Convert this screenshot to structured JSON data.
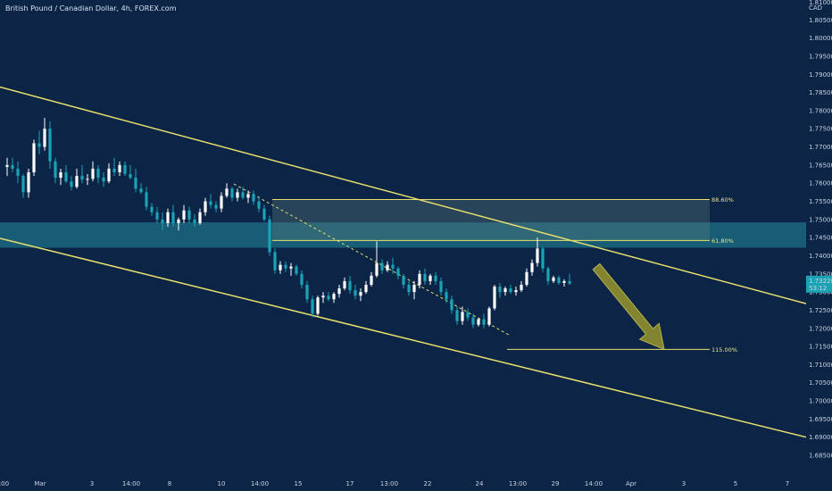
{
  "header": {
    "title": "British Pound / Canadian Dollar, 4h, FOREX.com"
  },
  "chart_data": {
    "type": "candlestick",
    "symbol": "British Pound / Canadian Dollar",
    "interval": "4h",
    "source": "FOREX.com",
    "currency": "CAD",
    "ylim": [
      1.6825,
      1.8125
    ],
    "y_ticks": [
      "1.81000",
      "1.80500",
      "1.80000",
      "1.79500",
      "1.79000",
      "1.78500",
      "1.78000",
      "1.77500",
      "1.77000",
      "1.76500",
      "1.76000",
      "1.75500",
      "1.75000",
      "1.74500",
      "1.74000",
      "1.73500",
      "1.73000",
      "1.72500",
      "1.72000",
      "1.71500",
      "1.71000",
      "1.70500",
      "1.70000",
      "1.69500",
      "1.69000",
      "1.68500"
    ],
    "x_ticks": [
      "14:00",
      "Mar",
      "3",
      "14:00",
      "8",
      "10",
      "14:00",
      "15",
      "17",
      "13:00",
      "22",
      "24",
      "13:00",
      "29",
      "14:00",
      "Apr",
      "3",
      "5",
      "7"
    ],
    "current_price": {
      "value": "1.73228",
      "countdown": "53:12"
    },
    "fib_levels": [
      {
        "label": "88.60%",
        "value": 1.7555
      },
      {
        "label": "61.80%",
        "value": 1.7442
      },
      {
        "label": "115.00%",
        "value": 1.7142
      }
    ],
    "resistance_zone": {
      "from": 1.7422,
      "to": 1.7492
    },
    "fib_box": {
      "from": 1.7442,
      "to": 1.7555
    },
    "channel": {
      "upper": {
        "from": 1.7865,
        "to": 1.7268
      },
      "lower": {
        "from": 1.7448,
        "to": 1.69
      }
    },
    "drawings": {
      "dashed_trend": {
        "from": 1.7598,
        "to": 1.7182
      },
      "projection_arrow": {
        "from": 1.737,
        "to": 1.7142
      }
    },
    "candles": [
      [
        1.7645,
        1.767,
        1.762,
        1.765
      ],
      [
        1.765,
        1.767,
        1.763,
        1.764
      ],
      [
        1.764,
        1.766,
        1.76,
        1.762
      ],
      [
        1.762,
        1.7625,
        1.756,
        1.7575
      ],
      [
        1.7575,
        1.764,
        1.756,
        1.763
      ],
      [
        1.763,
        1.772,
        1.762,
        1.771
      ],
      [
        1.771,
        1.7745,
        1.768,
        1.77
      ],
      [
        1.77,
        1.778,
        1.769,
        1.775
      ],
      [
        1.775,
        1.777,
        1.764,
        1.766
      ],
      [
        1.766,
        1.767,
        1.76,
        1.7615
      ],
      [
        1.7615,
        1.764,
        1.7595,
        1.763
      ],
      [
        1.763,
        1.765,
        1.76,
        1.7605
      ],
      [
        1.7605,
        1.762,
        1.758,
        1.759
      ],
      [
        1.759,
        1.764,
        1.7585,
        1.762
      ],
      [
        1.762,
        1.765,
        1.76,
        1.761
      ],
      [
        1.761,
        1.7625,
        1.7595,
        1.7612
      ],
      [
        1.7612,
        1.766,
        1.7605,
        1.764
      ],
      [
        1.764,
        1.765,
        1.76,
        1.7615
      ],
      [
        1.7615,
        1.763,
        1.759,
        1.7605
      ],
      [
        1.7605,
        1.7655,
        1.76,
        1.764
      ],
      [
        1.764,
        1.767,
        1.762,
        1.763
      ],
      [
        1.763,
        1.766,
        1.762,
        1.765
      ],
      [
        1.765,
        1.766,
        1.762,
        1.7625
      ],
      [
        1.7625,
        1.765,
        1.761,
        1.7615
      ],
      [
        1.7615,
        1.764,
        1.7575,
        1.7585
      ],
      [
        1.7585,
        1.76,
        1.757,
        1.7575
      ],
      [
        1.7575,
        1.759,
        1.7525,
        1.7535
      ],
      [
        1.7535,
        1.7545,
        1.751,
        1.752
      ],
      [
        1.752,
        1.7535,
        1.749,
        1.75
      ],
      [
        1.75,
        1.752,
        1.747,
        1.749
      ],
      [
        1.749,
        1.753,
        1.748,
        1.752
      ],
      [
        1.752,
        1.754,
        1.748,
        1.749
      ],
      [
        1.749,
        1.7505,
        1.747,
        1.75
      ],
      [
        1.75,
        1.754,
        1.749,
        1.7525
      ],
      [
        1.7525,
        1.7535,
        1.749,
        1.75
      ],
      [
        1.75,
        1.7515,
        1.748,
        1.749
      ],
      [
        1.749,
        1.753,
        1.7485,
        1.752
      ],
      [
        1.752,
        1.756,
        1.751,
        1.755
      ],
      [
        1.755,
        1.757,
        1.753,
        1.754
      ],
      [
        1.754,
        1.755,
        1.752,
        1.753
      ],
      [
        1.753,
        1.7575,
        1.752,
        1.7565
      ],
      [
        1.7565,
        1.76,
        1.756,
        1.7585
      ],
      [
        1.7585,
        1.759,
        1.755,
        1.756
      ],
      [
        1.756,
        1.7585,
        1.755,
        1.7575
      ],
      [
        1.7575,
        1.759,
        1.7555,
        1.756
      ],
      [
        1.756,
        1.758,
        1.7545,
        1.757
      ],
      [
        1.757,
        1.758,
        1.754,
        1.755
      ],
      [
        1.755,
        1.7565,
        1.752,
        1.753
      ],
      [
        1.753,
        1.754,
        1.7495,
        1.75
      ],
      [
        1.75,
        1.751,
        1.74,
        1.741
      ],
      [
        1.741,
        1.742,
        1.735,
        1.736
      ],
      [
        1.736,
        1.7385,
        1.735,
        1.7375
      ],
      [
        1.7375,
        1.7385,
        1.7355,
        1.7365
      ],
      [
        1.7365,
        1.738,
        1.7345,
        1.737
      ],
      [
        1.737,
        1.7375,
        1.7345,
        1.735
      ],
      [
        1.735,
        1.736,
        1.731,
        1.732
      ],
      [
        1.732,
        1.733,
        1.727,
        1.728
      ],
      [
        1.728,
        1.729,
        1.723,
        1.724
      ],
      [
        1.724,
        1.729,
        1.7235,
        1.7285
      ],
      [
        1.7285,
        1.73,
        1.727,
        1.729
      ],
      [
        1.729,
        1.73,
        1.7275,
        1.728
      ],
      [
        1.728,
        1.73,
        1.727,
        1.7295
      ],
      [
        1.7295,
        1.732,
        1.7285,
        1.731
      ],
      [
        1.731,
        1.734,
        1.7305,
        1.733
      ],
      [
        1.733,
        1.7345,
        1.7295,
        1.7305
      ],
      [
        1.7305,
        1.732,
        1.728,
        1.729
      ],
      [
        1.729,
        1.731,
        1.7275,
        1.73
      ],
      [
        1.73,
        1.733,
        1.7295,
        1.732
      ],
      [
        1.732,
        1.7355,
        1.7315,
        1.7345
      ],
      [
        1.7345,
        1.744,
        1.734,
        1.738
      ],
      [
        1.738,
        1.739,
        1.735,
        1.736
      ],
      [
        1.736,
        1.7385,
        1.7355,
        1.7375
      ],
      [
        1.7375,
        1.7395,
        1.735,
        1.7365
      ],
      [
        1.7365,
        1.737,
        1.7335,
        1.7345
      ],
      [
        1.7345,
        1.735,
        1.731,
        1.732
      ],
      [
        1.732,
        1.733,
        1.729,
        1.73
      ],
      [
        1.73,
        1.733,
        1.728,
        1.732
      ],
      [
        1.732,
        1.736,
        1.731,
        1.735
      ],
      [
        1.735,
        1.7365,
        1.732,
        1.733
      ],
      [
        1.733,
        1.735,
        1.732,
        1.7345
      ],
      [
        1.7345,
        1.7355,
        1.732,
        1.733
      ],
      [
        1.733,
        1.734,
        1.729,
        1.73
      ],
      [
        1.73,
        1.731,
        1.727,
        1.728
      ],
      [
        1.728,
        1.729,
        1.724,
        1.725
      ],
      [
        1.725,
        1.726,
        1.721,
        1.722
      ],
      [
        1.722,
        1.726,
        1.721,
        1.7245
      ],
      [
        1.7245,
        1.7255,
        1.722,
        1.723
      ],
      [
        1.723,
        1.724,
        1.72,
        1.721
      ],
      [
        1.721,
        1.723,
        1.7205,
        1.7225
      ],
      [
        1.7225,
        1.724,
        1.72,
        1.721
      ],
      [
        1.721,
        1.726,
        1.7205,
        1.7255
      ],
      [
        1.7255,
        1.732,
        1.725,
        1.7315
      ],
      [
        1.7315,
        1.7325,
        1.7285,
        1.73
      ],
      [
        1.73,
        1.7315,
        1.729,
        1.731
      ],
      [
        1.731,
        1.732,
        1.7295,
        1.73
      ],
      [
        1.73,
        1.7315,
        1.729,
        1.7305
      ],
      [
        1.7305,
        1.733,
        1.73,
        1.732
      ],
      [
        1.732,
        1.7365,
        1.7315,
        1.7355
      ],
      [
        1.7355,
        1.739,
        1.7345,
        1.738
      ],
      [
        1.738,
        1.745,
        1.737,
        1.742
      ],
      [
        1.742,
        1.7425,
        1.7355,
        1.7365
      ],
      [
        1.7365,
        1.737,
        1.732,
        1.733
      ],
      [
        1.733,
        1.7345,
        1.7325,
        1.734
      ],
      [
        1.734,
        1.7345,
        1.732,
        1.7325
      ],
      [
        1.7325,
        1.7335,
        1.7315,
        1.733
      ],
      [
        1.733,
        1.735,
        1.732,
        1.7323
      ]
    ]
  },
  "colors": {
    "background": "#0c2547",
    "up_candle": "#ffffff",
    "down_candle": "#1aa3b5",
    "annotation": "#e8e06a",
    "zone": "#1c6f86",
    "price_tag": "#1aa3b5"
  }
}
